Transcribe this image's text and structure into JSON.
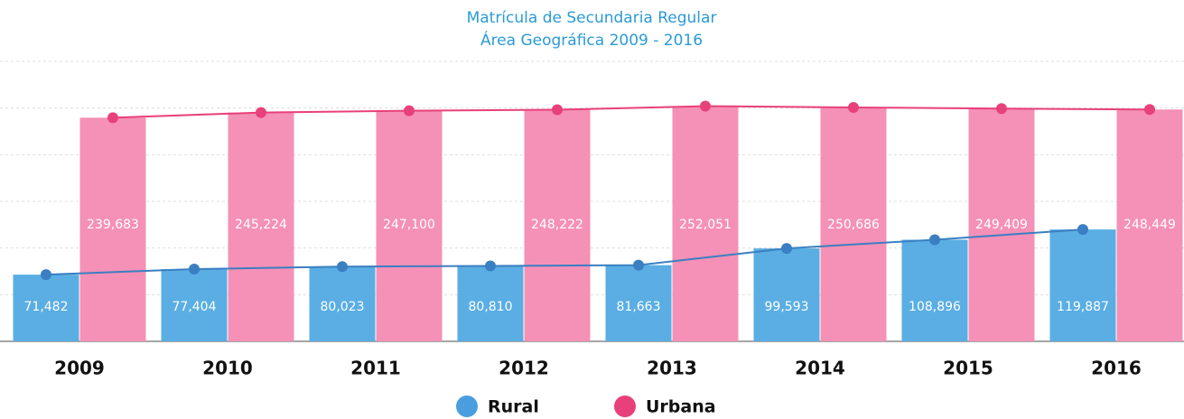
{
  "chart_data": {
    "type": "bar",
    "title": "Matrícula de Secundaria Regular",
    "subtitle": "Área Geográfica 2009 - 2016",
    "categories": [
      "2009",
      "2010",
      "2011",
      "2012",
      "2013",
      "2014",
      "2015",
      "2016"
    ],
    "series": [
      {
        "name": "Rural",
        "color": "#5aaee3",
        "line_color": "#3a7fc1",
        "values": [
          71482,
          77404,
          80023,
          80810,
          81663,
          99593,
          108896,
          119887
        ],
        "value_labels": [
          "71,482",
          "77,404",
          "80,023",
          "80,810",
          "81,663",
          "99,593",
          "108,896",
          "119,887"
        ]
      },
      {
        "name": "Urbana",
        "color": "#f590b6",
        "line_color": "#e8407a",
        "values": [
          239683,
          245224,
          247100,
          248222,
          252051,
          250686,
          249409,
          248449
        ],
        "value_labels": [
          "239,683",
          "245,224",
          "247,100",
          "248,222",
          "252,051",
          "250,686",
          "249,409",
          "248,449"
        ]
      }
    ],
    "ylim": [
      0,
      300000
    ],
    "yticks": [
      0,
      50000,
      100000,
      150000,
      200000,
      250000,
      300000
    ],
    "grid": true
  }
}
